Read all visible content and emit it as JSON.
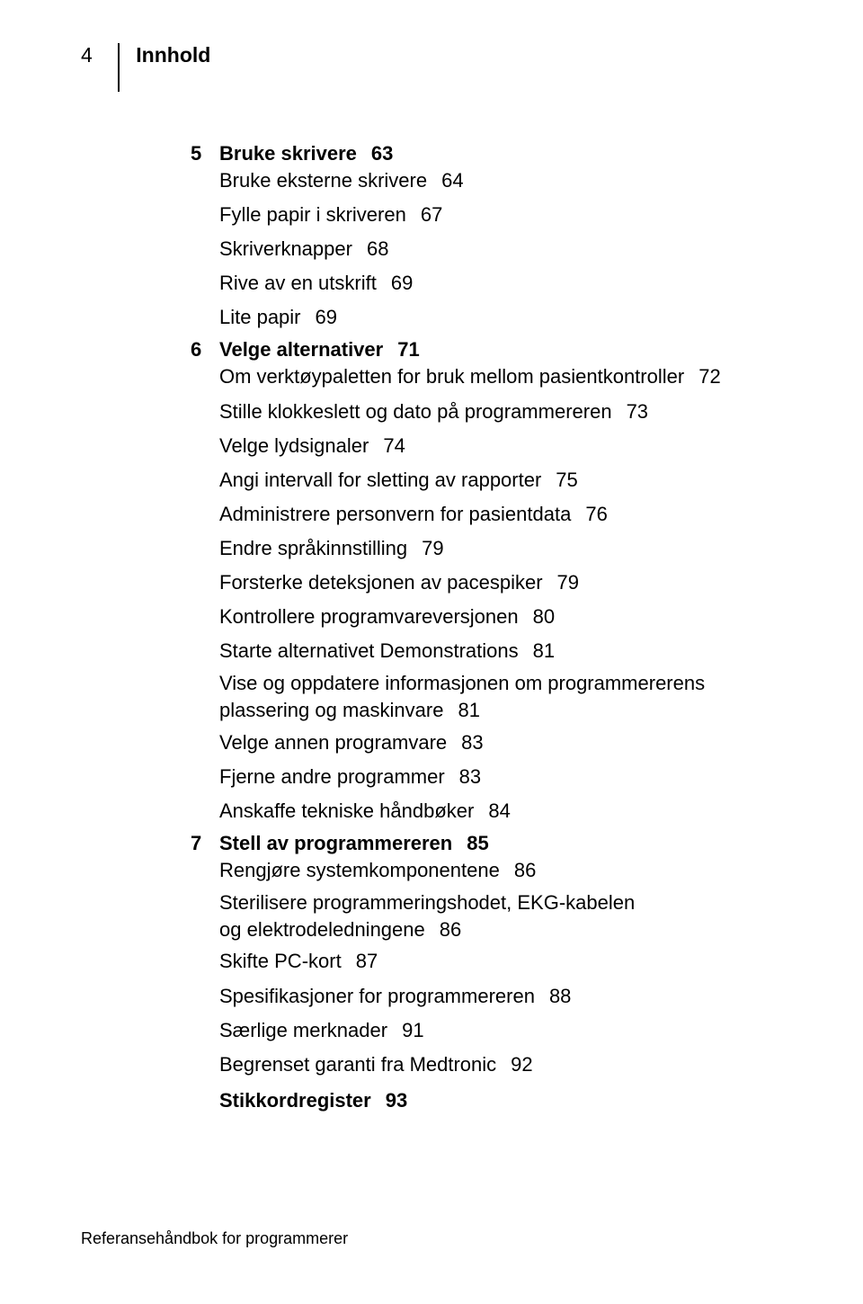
{
  "header": {
    "page_number": "4",
    "title": "Innhold"
  },
  "toc": {
    "ch5": {
      "num": "5",
      "title": "Bruke skrivere",
      "page": "63"
    },
    "ch5_items": [
      {
        "text": "Bruke eksterne skrivere",
        "page": "64"
      },
      {
        "text": "Fylle papir i skriveren",
        "page": "67"
      },
      {
        "text": "Skriverknapper",
        "page": "68"
      },
      {
        "text": "Rive av en utskrift",
        "page": "69"
      },
      {
        "text": "Lite papir",
        "page": "69"
      }
    ],
    "ch6": {
      "num": "6",
      "title": "Velge alternativer",
      "page": "71"
    },
    "ch6_items": [
      {
        "text": "Om verktøypaletten for bruk mellom pasientkontroller",
        "page": "72"
      },
      {
        "text": "Stille klokkeslett og dato på programmereren",
        "page": "73"
      },
      {
        "text": "Velge lydsignaler",
        "page": "74"
      },
      {
        "text": "Angi intervall for sletting av rapporter",
        "page": "75"
      },
      {
        "text": "Administrere personvern for pasientdata",
        "page": "76"
      },
      {
        "text": "Endre språkinnstilling",
        "page": "79"
      },
      {
        "text": "Forsterke deteksjonen av pacespiker",
        "page": "79"
      },
      {
        "text": "Kontrollere programvareversjonen",
        "page": "80"
      },
      {
        "text": "Starte alternativet Demonstrations",
        "page": "81"
      },
      {
        "line1": "Vise og oppdatere informasjonen om programmererens",
        "line2": "plassering og maskinvare",
        "page": "81"
      },
      {
        "text": "Velge annen programvare",
        "page": "83"
      },
      {
        "text": "Fjerne andre programmer",
        "page": "83"
      },
      {
        "text": "Anskaffe tekniske håndbøker",
        "page": "84"
      }
    ],
    "ch7": {
      "num": "7",
      "title": "Stell av programmereren",
      "page": "85"
    },
    "ch7_items": [
      {
        "text": "Rengjøre systemkomponentene",
        "page": "86"
      },
      {
        "line1": "Sterilisere programmeringshodet, EKG-kabelen",
        "line2": "og elektrodeledningene",
        "page": "86"
      },
      {
        "text": "Skifte PC-kort",
        "page": "87"
      },
      {
        "text": "Spesifikasjoner for programmereren",
        "page": "88"
      },
      {
        "text": "Særlige merknader",
        "page": "91"
      },
      {
        "text": "Begrenset garanti fra Medtronic",
        "page": "92"
      }
    ],
    "index": {
      "title": "Stikkordregister",
      "page": "93"
    }
  },
  "footer": "Referansehåndbok for programmerer"
}
